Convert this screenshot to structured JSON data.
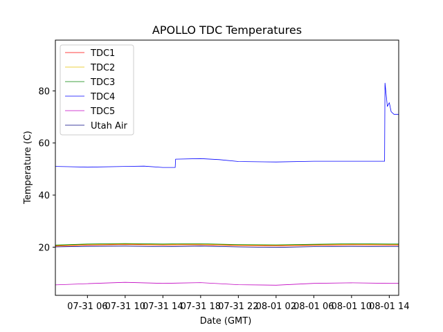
{
  "chart_data": {
    "type": "line",
    "title": "APOLLO TDC Temperatures",
    "xlabel": "Date (GMT)",
    "ylabel": "Temperature (C)",
    "x_unit": "hours since 07-31 00:00 GMT",
    "xlim": [
      2.6,
      39.0
    ],
    "ylim": [
      1.5,
      99.5
    ],
    "x_ticks": [
      {
        "value": 6,
        "label": "07-31 06"
      },
      {
        "value": 10,
        "label": "07-31 10"
      },
      {
        "value": 14,
        "label": "07-31 14"
      },
      {
        "value": 18,
        "label": "07-31 18"
      },
      {
        "value": 22,
        "label": "07-31 22"
      },
      {
        "value": 26,
        "label": "08-01 02"
      },
      {
        "value": 30,
        "label": "08-01 06"
      },
      {
        "value": 34,
        "label": "08-01 10"
      },
      {
        "value": 38,
        "label": "08-01 14"
      }
    ],
    "y_ticks": [
      {
        "value": 20,
        "label": "20"
      },
      {
        "value": 40,
        "label": "40"
      },
      {
        "value": 60,
        "label": "60"
      },
      {
        "value": 80,
        "label": "80"
      }
    ],
    "legend_position": "top-left",
    "series": [
      {
        "name": "TDC1",
        "color": "#ff0000",
        "x": [
          2.6,
          6,
          10,
          14,
          16,
          18,
          22,
          26,
          30,
          34,
          38,
          39
        ],
        "y": [
          20.4,
          20.8,
          21.0,
          20.8,
          20.9,
          20.9,
          20.6,
          20.5,
          20.7,
          20.9,
          20.8,
          20.8
        ]
      },
      {
        "name": "TDC2",
        "color": "#e6c200",
        "x": [
          2.6,
          6,
          10,
          14,
          16,
          18,
          22,
          26,
          30,
          34,
          38,
          39
        ],
        "y": [
          20.6,
          21.0,
          21.2,
          21.0,
          21.1,
          21.1,
          20.8,
          20.7,
          20.9,
          21.1,
          21.0,
          21.0
        ]
      },
      {
        "name": "TDC3",
        "color": "#008000",
        "x": [
          2.6,
          6,
          10,
          14,
          16,
          18,
          22,
          26,
          30,
          34,
          38,
          39
        ],
        "y": [
          20.8,
          21.2,
          21.4,
          21.2,
          21.3,
          21.3,
          21.0,
          20.9,
          21.1,
          21.3,
          21.2,
          21.2
        ]
      },
      {
        "name": "TDC4",
        "color": "#0000ff",
        "x": [
          2.6,
          4,
          6,
          10,
          12,
          14,
          15.3,
          15.35,
          18,
          20,
          22,
          26,
          30,
          34,
          37.5,
          37.55,
          37.8,
          38,
          38.2,
          38.5,
          39
        ],
        "y": [
          51.0,
          50.9,
          50.7,
          51.0,
          51.1,
          50.6,
          50.6,
          53.8,
          54.0,
          53.6,
          52.9,
          52.7,
          53.0,
          53.0,
          53.0,
          83.0,
          74.0,
          75.5,
          72.0,
          71.0,
          71.0
        ]
      },
      {
        "name": "TDC5",
        "color": "#c000c0",
        "x": [
          2.6,
          6,
          10,
          14,
          18,
          22,
          26,
          30,
          34,
          38,
          39
        ],
        "y": [
          5.5,
          6.0,
          6.5,
          6.1,
          6.4,
          5.6,
          5.4,
          6.1,
          6.3,
          6.1,
          6.1
        ]
      },
      {
        "name": "Utah Air",
        "color": "#000080",
        "x": [
          2.6,
          6,
          10,
          14,
          18,
          22,
          26,
          30,
          34,
          38,
          39
        ],
        "y": [
          20.1,
          20.3,
          20.4,
          20.2,
          20.4,
          20.1,
          19.9,
          20.2,
          20.3,
          20.2,
          20.2
        ]
      }
    ]
  }
}
